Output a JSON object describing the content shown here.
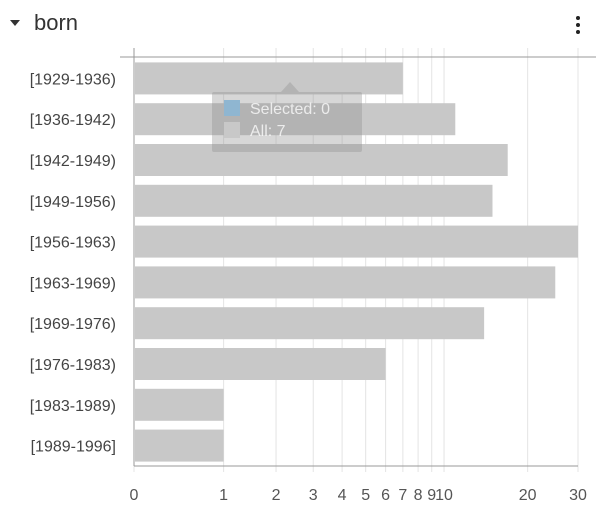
{
  "header": {
    "title": "born"
  },
  "tooltip": {
    "selected_label": "Selected: 0",
    "all_label": "All: 7",
    "selected_color": "#8fb6d1",
    "all_color": "#c8c8c8"
  },
  "colors": {
    "bar": "#c8c8c8",
    "grid": "#e4e4e4",
    "axis": "#999999"
  },
  "chart_data": {
    "type": "bar",
    "orientation": "horizontal",
    "x_scale": "symlog",
    "categories": [
      "[1929-1936)",
      "[1936-1942)",
      "[1942-1949)",
      "[1949-1956)",
      "[1956-1963)",
      "[1963-1969)",
      "[1969-1976)",
      "[1976-1983)",
      "[1983-1989)",
      "[1989-1996]"
    ],
    "series": [
      {
        "values": [
          7,
          11,
          17,
          15,
          30,
          25,
          14,
          6,
          1,
          1
        ]
      }
    ],
    "x_ticks": [
      0,
      1,
      2,
      3,
      4,
      5,
      6,
      7,
      8,
      9,
      10,
      20,
      30
    ],
    "x_tick_labels": [
      "0",
      "1",
      "2",
      "3",
      "4",
      "5",
      "6",
      "7",
      "8",
      "9",
      "10",
      "20",
      "30"
    ],
    "xlim": [
      0,
      30
    ],
    "grid": true
  }
}
